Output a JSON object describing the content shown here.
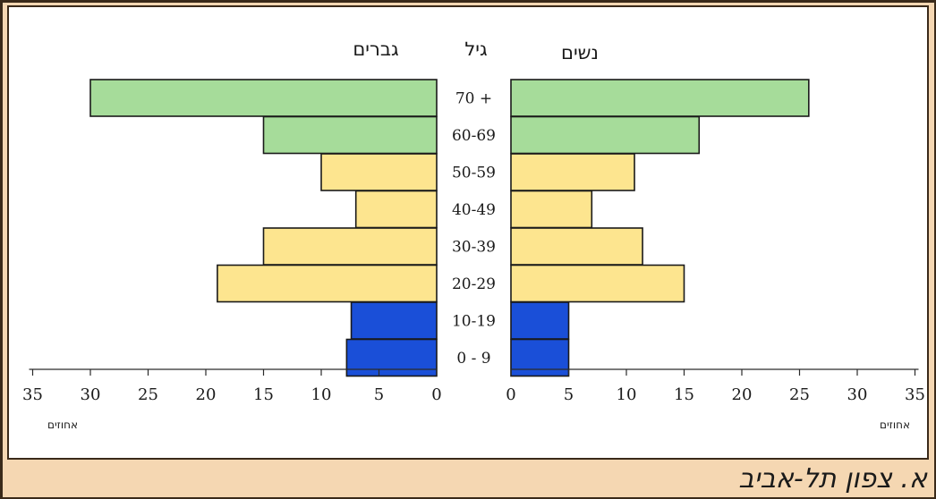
{
  "caption": "א. צפון תל-אביב",
  "chart_data": {
    "type": "bar",
    "orientation": "population-pyramid",
    "headers": {
      "left_series": "גברים",
      "center": "גיל",
      "right_series": "נשים"
    },
    "categories": [
      "70 +",
      "60-69",
      "50-59",
      "40-49",
      "30-39",
      "20-29",
      "10-19",
      "0 - 9"
    ],
    "series": [
      {
        "name": "גברים",
        "side": "left",
        "values": [
          30,
          15,
          10,
          7,
          15,
          19,
          7.4,
          7.8
        ]
      },
      {
        "name": "נשים",
        "side": "right",
        "values": [
          25.8,
          16.3,
          10.7,
          7,
          11.4,
          15,
          5,
          5
        ]
      }
    ],
    "bar_colors": [
      "#a6dc9a",
      "#a6dc9a",
      "#fde58f",
      "#fde58f",
      "#fde58f",
      "#fde58f",
      "#1a4fd8",
      "#1a4fd8"
    ],
    "xlim": [
      0,
      35
    ],
    "x_ticks": [
      "0",
      "5",
      "10",
      "15",
      "20",
      "25",
      "30",
      "35"
    ],
    "xlabel_left": "אחוזים",
    "xlabel_right": "אחוזים"
  }
}
